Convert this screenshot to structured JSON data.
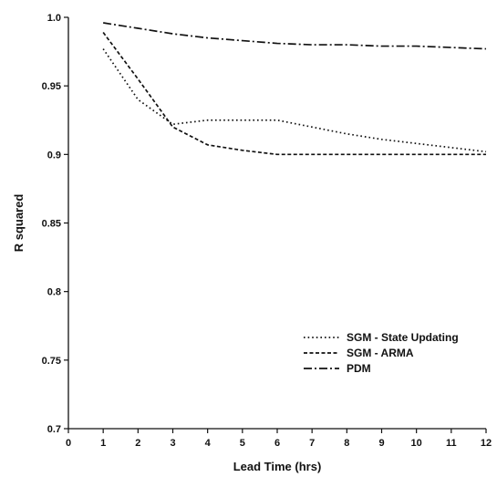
{
  "chart_data": {
    "type": "line",
    "title": "",
    "xlabel": "Lead Time (hrs)",
    "ylabel": "R squared",
    "xlim": [
      0,
      12
    ],
    "ylim": [
      0.7,
      1.0
    ],
    "x_ticks": [
      0,
      1,
      2,
      3,
      4,
      5,
      6,
      7,
      8,
      9,
      10,
      11,
      12
    ],
    "y_ticks": [
      0.7,
      0.75,
      0.8,
      0.85,
      0.9,
      0.95,
      1.0
    ],
    "y_tick_labels": [
      "0.7",
      "0.75",
      "0.8",
      "0.85",
      "0.9",
      "0.95",
      "1.0"
    ],
    "grid": false,
    "legend_position": "bottom-right",
    "series": [
      {
        "name": "SGM - State Updating",
        "style": "dotted",
        "x": [
          1,
          2,
          3,
          4,
          5,
          6,
          7,
          8,
          9,
          10,
          11,
          12
        ],
        "values": [
          0.977,
          0.94,
          0.922,
          0.925,
          0.925,
          0.925,
          0.92,
          0.915,
          0.911,
          0.908,
          0.905,
          0.902
        ]
      },
      {
        "name": "SGM - ARMA",
        "style": "dashed",
        "x": [
          1,
          2,
          3,
          4,
          5,
          6,
          7,
          8,
          9,
          10,
          11,
          12
        ],
        "values": [
          0.989,
          0.955,
          0.92,
          0.907,
          0.903,
          0.9,
          0.9,
          0.9,
          0.9,
          0.9,
          0.9,
          0.9
        ]
      },
      {
        "name": "PDM",
        "style": "dashdot",
        "x": [
          1,
          2,
          3,
          4,
          5,
          6,
          7,
          8,
          9,
          10,
          11,
          12
        ],
        "values": [
          0.996,
          0.992,
          0.988,
          0.985,
          0.983,
          0.981,
          0.98,
          0.98,
          0.979,
          0.979,
          0.978,
          0.977
        ]
      }
    ]
  }
}
